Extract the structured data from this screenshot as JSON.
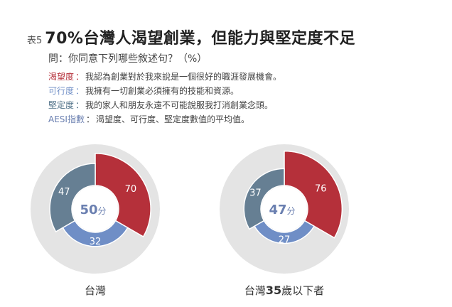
{
  "header": {
    "table_label": "表5",
    "title": "70%台灣人渴望創業，但能力與堅定度不足",
    "question": "問：你同意下列哪些敘述句？（%）"
  },
  "definitions": [
    {
      "term": "渴望度",
      "sep": "：",
      "text": "我認為創業對於我來說是一個很好的職涯發展機會。",
      "color": "#b5303a"
    },
    {
      "term": "可行度",
      "sep": "：",
      "text": "我擁有一切創業必須擁有的技能和資源。",
      "color": "#6f8ec6"
    },
    {
      "term": "堅定度",
      "sep": "：",
      "text": "我的家人和朋友永遠不可能說服我打消創業念頭。",
      "color": "#4e6f86"
    },
    {
      "term": "AESI指數",
      "sep": "：",
      "text": "渴望度、可行度、堅定度數值的平均值。",
      "color": "#6a7fb0"
    }
  ],
  "chart_data": [
    {
      "type": "pie",
      "label": "台灣",
      "center_value": "50",
      "center_unit": "分",
      "series": [
        {
          "name": "渴望度",
          "value": 70,
          "color": "#b5303a"
        },
        {
          "name": "可行度",
          "value": 32,
          "color": "#6f8ec6"
        },
        {
          "name": "堅定度",
          "value": 47,
          "color": "#667f93"
        }
      ]
    },
    {
      "type": "pie",
      "label_prefix": "台灣",
      "label_bold": "35",
      "label_suffix": "歲以下者",
      "center_value": "47",
      "center_unit": "分",
      "series": [
        {
          "name": "渴望度",
          "value": 76,
          "color": "#b5303a"
        },
        {
          "name": "可行度",
          "value": 27,
          "color": "#6f8ec6"
        },
        {
          "name": "堅定度",
          "value": 37,
          "color": "#667f93"
        }
      ]
    }
  ],
  "colors": {
    "bg_disc": "#e4e4e4",
    "center_text": "#6a7fb0",
    "value_text": "#ffffff"
  }
}
